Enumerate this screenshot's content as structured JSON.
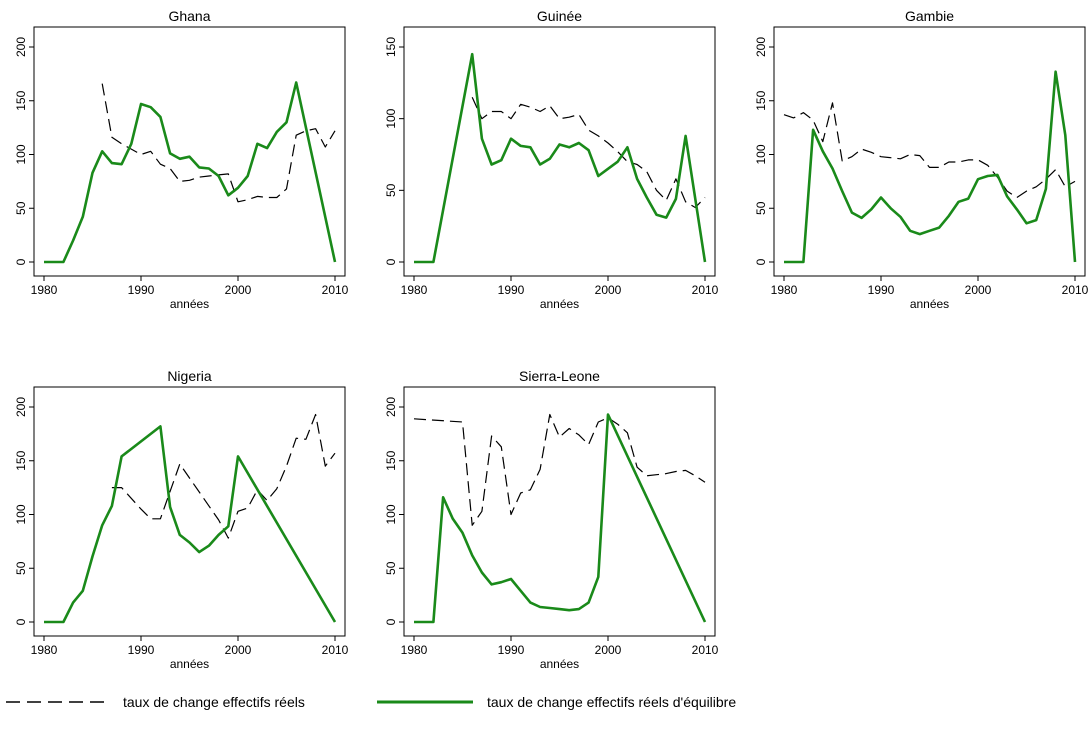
{
  "colors": {
    "reel": "#000000",
    "equilibre": "#1a8a1a"
  },
  "legend": {
    "reel_label": "taux de change effectifs réels",
    "equilibre_label": "taux de change effectifs réels d'équilibre"
  },
  "chart_data": [
    {
      "type": "line",
      "title": "Ghana",
      "xlabel": "années",
      "ylabel": "",
      "xlim": [
        1980,
        2010
      ],
      "ylim": [
        0,
        200
      ],
      "xticks": [
        1980,
        1990,
        2000,
        2010
      ],
      "yticks": [
        0,
        50,
        100,
        150,
        200
      ],
      "series": [
        {
          "name": "taux de change effectifs réels",
          "style": "dashed",
          "x": [
            1986,
            1987,
            1988,
            1989,
            1990,
            1991,
            1992,
            1993,
            1994,
            1995,
            1996,
            1997,
            1998,
            1999,
            2000,
            2001,
            2002,
            2003,
            2004,
            2005,
            2006,
            2007,
            2008,
            2009,
            2010
          ],
          "y": [
            166,
            116,
            110,
            105,
            100,
            103,
            91,
            87,
            75,
            76,
            79,
            80,
            81,
            82,
            56,
            58,
            61,
            60,
            60,
            68,
            118,
            122,
            124,
            107,
            122
          ]
        },
        {
          "name": "taux de change effectifs réels d'équilibre",
          "style": "solid",
          "x": [
            1980,
            1981,
            1982,
            1983,
            1984,
            1985,
            1986,
            1987,
            1988,
            1989,
            1990,
            1991,
            1992,
            1993,
            1994,
            1995,
            1996,
            1997,
            1998,
            1999,
            2000,
            2001,
            2002,
            2003,
            2004,
            2005,
            2006,
            2010
          ],
          "y": [
            0,
            0,
            0,
            20,
            42,
            83,
            103,
            92,
            91,
            110,
            147,
            144,
            135,
            101,
            96,
            98,
            88,
            87,
            80,
            62,
            69,
            80,
            110,
            106,
            121,
            130,
            167,
            0
          ]
        }
      ]
    },
    {
      "type": "line",
      "title": "Guinée",
      "xlabel": "années",
      "ylabel": "",
      "xlim": [
        1980,
        2010
      ],
      "ylim": [
        0,
        150
      ],
      "xticks": [
        1980,
        1990,
        2000,
        2010
      ],
      "yticks": [
        0,
        50,
        100,
        150
      ],
      "series": [
        {
          "name": "taux de change effectifs réels",
          "style": "dashed",
          "x": [
            1986,
            1987,
            1988,
            1989,
            1990,
            1991,
            1992,
            1993,
            1994,
            1995,
            1996,
            1997,
            1998,
            1999,
            2000,
            2001,
            2002,
            2003,
            2004,
            2005,
            2006,
            2007,
            2008,
            2009,
            2010
          ],
          "y": [
            115,
            100,
            105,
            105,
            100,
            110,
            108,
            105,
            109,
            100,
            101,
            103,
            92,
            88,
            83,
            77,
            70,
            68,
            63,
            50,
            43,
            58,
            42,
            38,
            45
          ]
        },
        {
          "name": "taux de change effectifs réels d'équilibre",
          "style": "solid",
          "x": [
            1980,
            1981,
            1982,
            1986,
            1987,
            1988,
            1989,
            1990,
            1991,
            1992,
            1993,
            1994,
            1995,
            1996,
            1997,
            1998,
            1999,
            2000,
            2001,
            2002,
            2003,
            2004,
            2005,
            2006,
            2007,
            2008,
            2010
          ],
          "y": [
            0,
            0,
            0,
            145,
            86,
            68,
            71,
            86,
            81,
            80,
            68,
            72,
            82,
            80,
            83,
            78,
            60,
            65,
            70,
            80,
            58,
            45,
            33,
            31,
            44,
            88,
            0
          ]
        }
      ]
    },
    {
      "type": "line",
      "title": "Gambie",
      "xlabel": "années",
      "ylabel": "",
      "xlim": [
        1980,
        2010
      ],
      "ylim": [
        0,
        200
      ],
      "xticks": [
        1980,
        1990,
        2000,
        2010
      ],
      "yticks": [
        0,
        50,
        100,
        150,
        200
      ],
      "series": [
        {
          "name": "taux de change effectifs réels",
          "style": "dashed",
          "x": [
            1980,
            1981,
            1982,
            1983,
            1984,
            1985,
            1986,
            1987,
            1988,
            1989,
            1990,
            1991,
            1992,
            1993,
            1994,
            1995,
            1996,
            1997,
            1998,
            1999,
            2000,
            2001,
            2002,
            2003,
            2004,
            2005,
            2006,
            2007,
            2008,
            2009,
            2010
          ],
          "y": [
            137,
            134,
            139,
            132,
            112,
            148,
            94,
            98,
            105,
            102,
            98,
            97,
            96,
            100,
            99,
            88,
            88,
            93,
            93,
            95,
            95,
            90,
            79,
            66,
            60,
            66,
            70,
            77,
            86,
            70,
            75
          ]
        },
        {
          "name": "taux de change effectifs réels d'équilibre",
          "style": "solid",
          "x": [
            1980,
            1981,
            1982,
            1983,
            1984,
            1985,
            1986,
            1987,
            1988,
            1989,
            1990,
            1991,
            1992,
            1993,
            1994,
            1995,
            1996,
            1997,
            1998,
            1999,
            2000,
            2001,
            2002,
            2003,
            2004,
            2005,
            2006,
            2007,
            2008,
            2009,
            2010
          ],
          "y": [
            0,
            0,
            0,
            123,
            103,
            87,
            66,
            46,
            41,
            49,
            60,
            50,
            42,
            29,
            26,
            29,
            32,
            43,
            56,
            59,
            77,
            80,
            81,
            61,
            49,
            36,
            39,
            68,
            177,
            118,
            0
          ]
        }
      ]
    },
    {
      "type": "line",
      "title": "Nigeria",
      "xlabel": "années",
      "ylabel": "",
      "xlim": [
        1980,
        2010
      ],
      "ylim": [
        0,
        200
      ],
      "xticks": [
        1980,
        1990,
        2000,
        2010
      ],
      "yticks": [
        0,
        50,
        100,
        150,
        200
      ],
      "series": [
        {
          "name": "taux de change effectifs réels",
          "style": "dashed",
          "x": [
            1987,
            1988,
            1990,
            1991,
            1992,
            1994,
            1998,
            1999,
            2000,
            2001,
            2002,
            2003,
            2004,
            2005,
            2006,
            2007,
            2008,
            2009,
            2010
          ],
          "y": [
            125,
            125,
            105,
            96,
            96,
            147,
            95,
            78,
            103,
            106,
            123,
            113,
            124,
            145,
            171,
            170,
            193,
            145,
            157
          ]
        },
        {
          "name": "taux de change effectifs réels d'équilibre",
          "style": "solid",
          "x": [
            1980,
            1981,
            1982,
            1983,
            1984,
            1985,
            1986,
            1987,
            1988,
            1992,
            1993,
            1994,
            1995,
            1996,
            1997,
            1998,
            1999,
            2000,
            2010
          ],
          "y": [
            0,
            0,
            0,
            18,
            29,
            61,
            90,
            108,
            154,
            182,
            107,
            81,
            74,
            65,
            71,
            81,
            89,
            154,
            0
          ]
        }
      ]
    },
    {
      "type": "line",
      "title": "Sierra-Leone",
      "xlabel": "années",
      "ylabel": "",
      "xlim": [
        1980,
        2010
      ],
      "ylim": [
        0,
        200
      ],
      "xticks": [
        1980,
        1990,
        2000,
        2010
      ],
      "yticks": [
        0,
        50,
        100,
        150,
        200
      ],
      "series": [
        {
          "name": "taux de change effectifs réels",
          "style": "dashed",
          "x": [
            1980,
            1985,
            1986,
            1987,
            1988,
            1989,
            1990,
            1991,
            1992,
            1993,
            1994,
            1995,
            1996,
            1997,
            1998,
            1999,
            2000,
            2001,
            2002,
            2003,
            2004,
            2005,
            2006,
            2007,
            2008,
            2009,
            2010
          ],
          "y": [
            189,
            186,
            90,
            103,
            173,
            163,
            100,
            120,
            123,
            142,
            193,
            172,
            180,
            174,
            165,
            186,
            190,
            184,
            176,
            144,
            136,
            137,
            138,
            140,
            141,
            136,
            130
          ]
        },
        {
          "name": "taux de change effectifs réels d'équilibre",
          "style": "solid",
          "x": [
            1980,
            1981,
            1982,
            1983,
            1984,
            1985,
            1986,
            1987,
            1988,
            1989,
            1990,
            1991,
            1992,
            1993,
            1994,
            1995,
            1996,
            1997,
            1998,
            1999,
            2000,
            2010
          ],
          "y": [
            0,
            0,
            0,
            116,
            96,
            83,
            62,
            46,
            35,
            37,
            40,
            29,
            18,
            14,
            13,
            12,
            11,
            12,
            18,
            42,
            193,
            0
          ]
        }
      ]
    }
  ]
}
